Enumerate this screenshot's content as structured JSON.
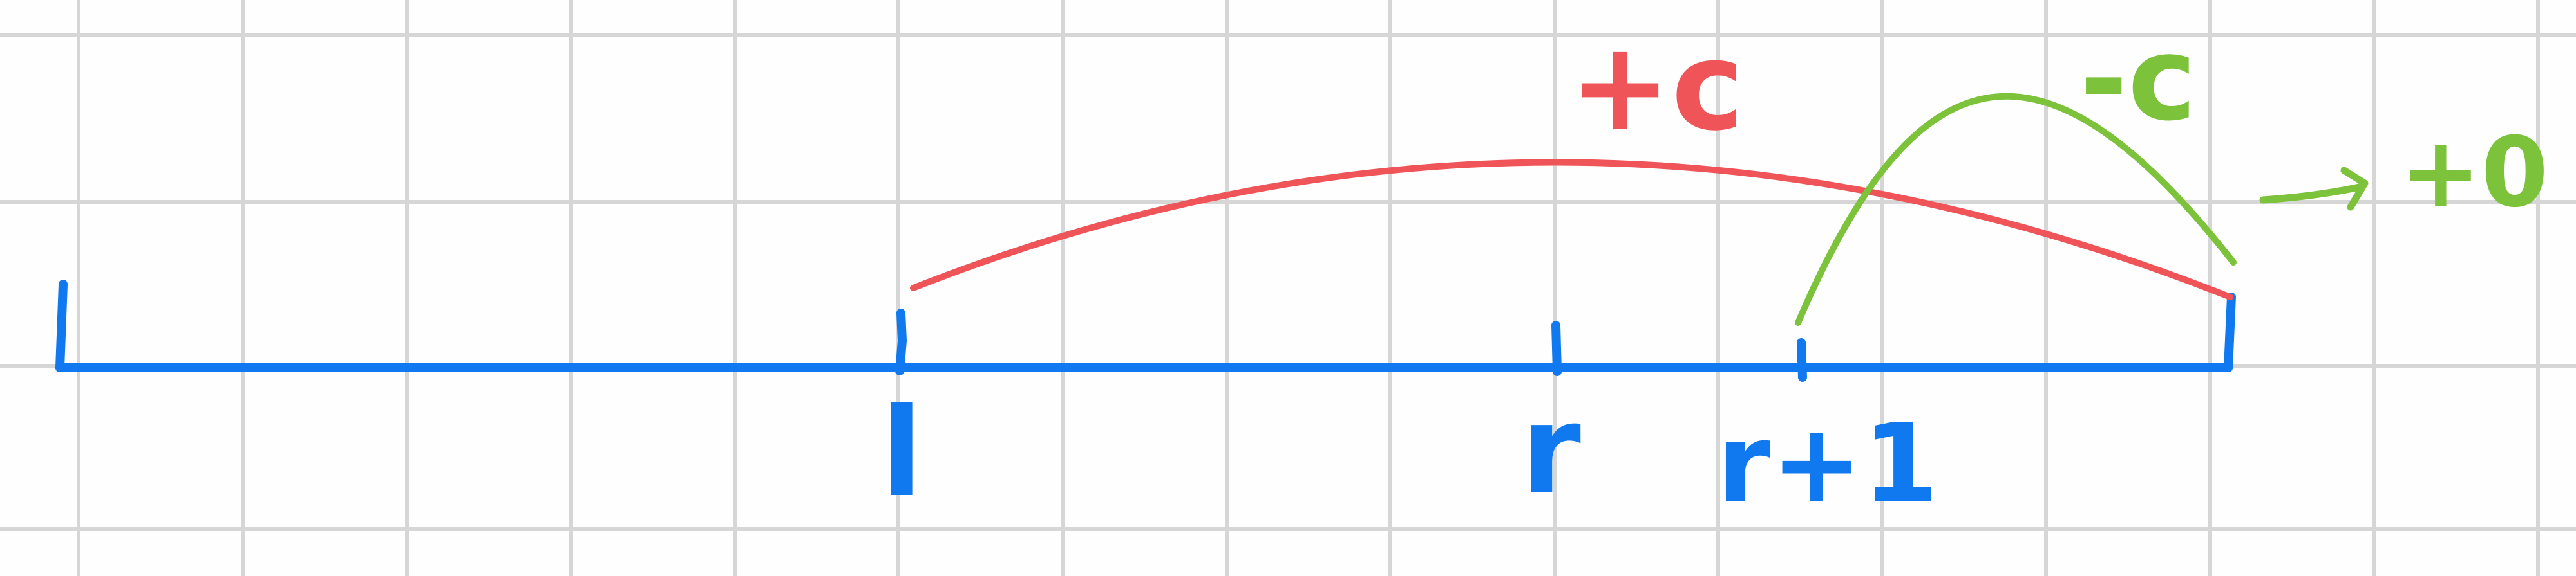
{
  "colors": {
    "background": "#fefefe",
    "grid": "#d6d6d6",
    "axis": "#1079f0",
    "add_arc": "#ef5458",
    "subtract_arc": "#7cc23a"
  },
  "labels": {
    "l": "l",
    "r": "r",
    "r_plus_1": "r+1",
    "add_c": "+c",
    "minus_c": "-c",
    "result": "+0"
  },
  "icons": {
    "result_arrow": "arrow-right-icon"
  }
}
